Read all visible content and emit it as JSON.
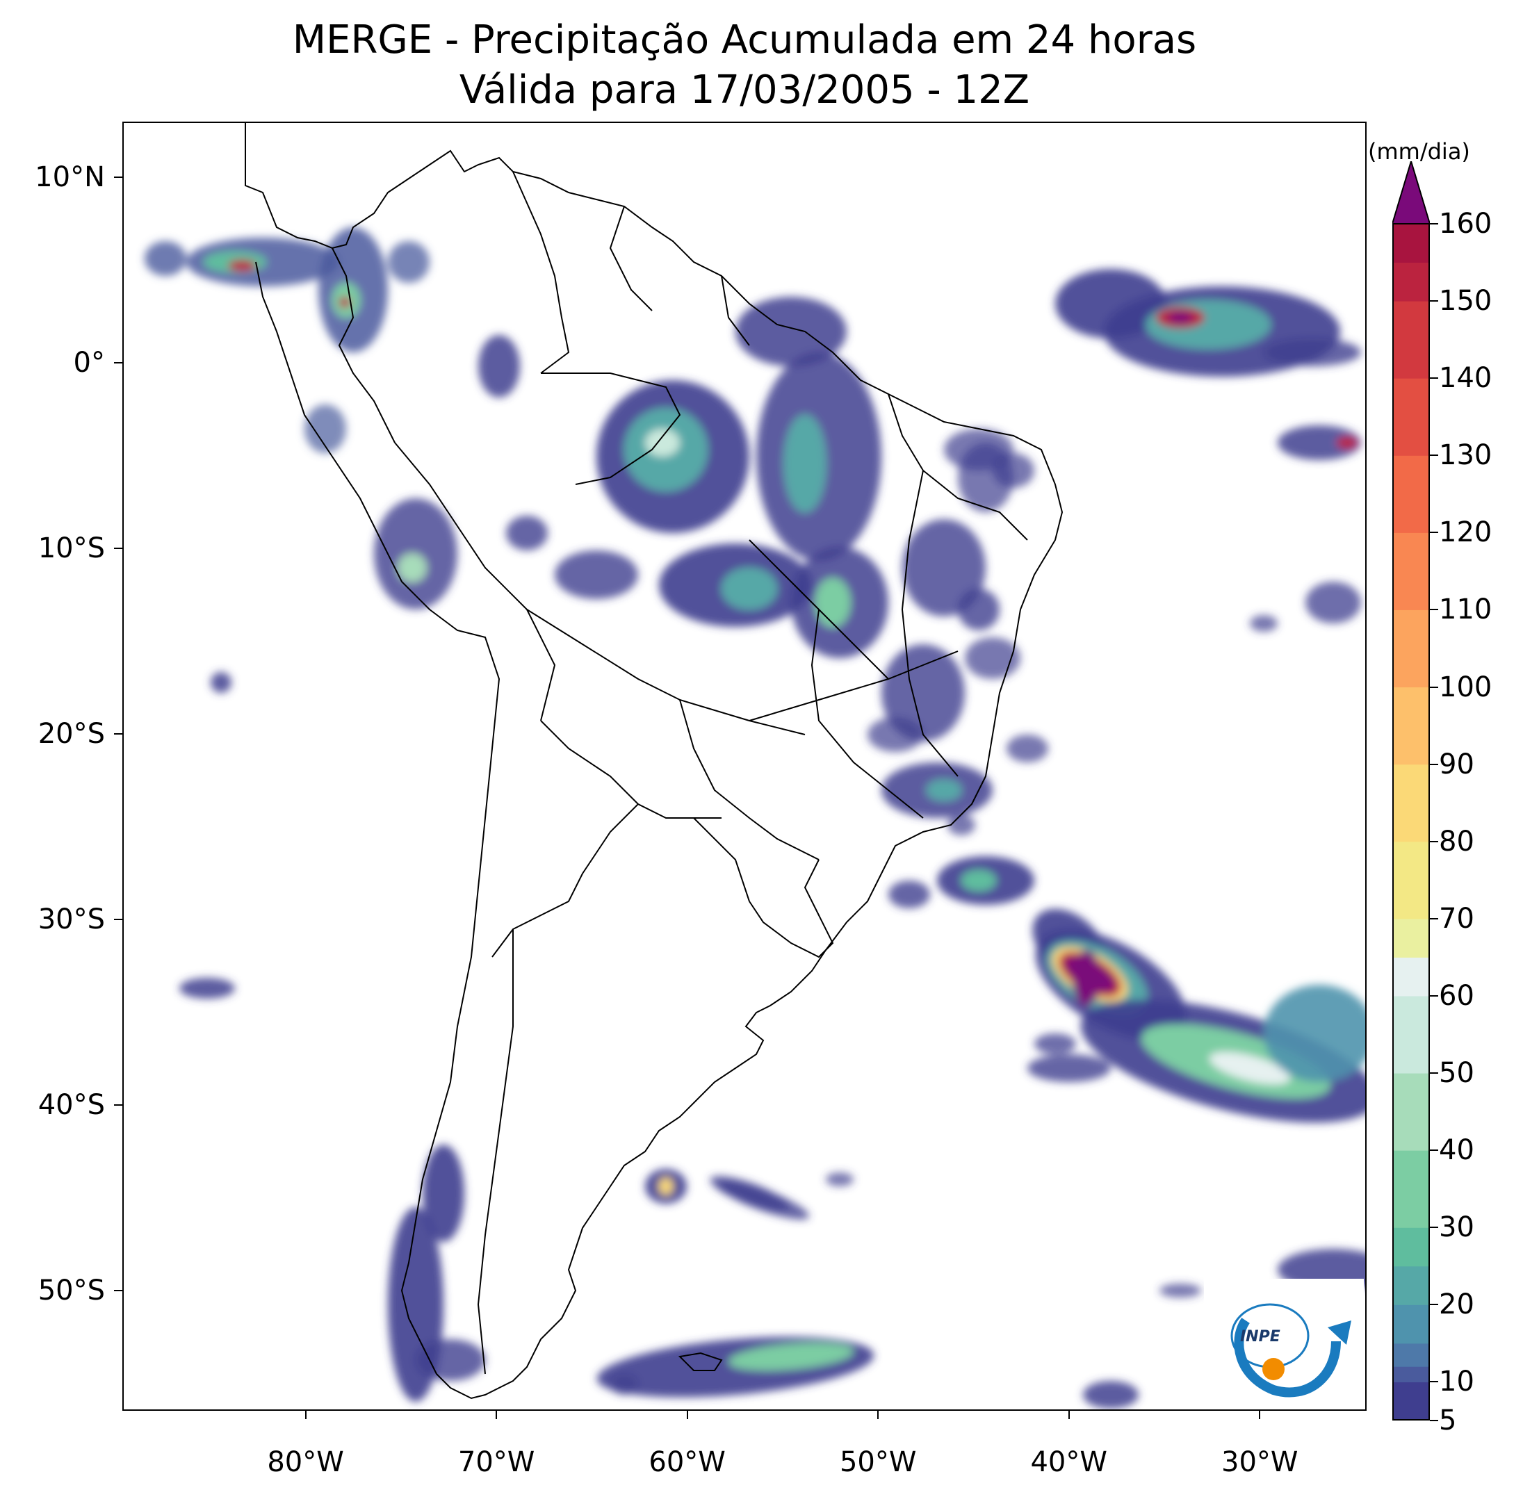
{
  "title": {
    "line1": "MERGE - Precipitação Acumulada em 24 horas",
    "line2": "Válida para 17/03/2005 - 12Z"
  },
  "map": {
    "lon_range": [
      -89.6,
      -24.4
    ],
    "lat_range": [
      -56.5,
      13.0
    ],
    "lat_ticks": [
      "10°N",
      "0°",
      "10°S",
      "20°S",
      "30°S",
      "40°S",
      "50°S"
    ],
    "lat_values": [
      10,
      0,
      -10,
      -20,
      -30,
      -40,
      -50
    ],
    "lon_ticks": [
      "80°W",
      "70°W",
      "60°W",
      "50°W",
      "40°W",
      "30°W"
    ],
    "lon_values": [
      -80,
      -70,
      -60,
      -50,
      -40,
      -30
    ]
  },
  "colorbar": {
    "units": "(mm/dia)",
    "tick_labels": [
      "5",
      "10",
      "20",
      "30",
      "40",
      "50",
      "60",
      "70",
      "80",
      "90",
      "100",
      "110",
      "120",
      "130",
      "140",
      "150",
      "160"
    ],
    "tick_values": [
      5,
      10,
      20,
      30,
      40,
      50,
      60,
      70,
      80,
      90,
      100,
      110,
      120,
      130,
      140,
      150,
      160
    ],
    "colors": [
      "#3f3e8f",
      "#4a5b9d",
      "#4e79a9",
      "#4f93ad",
      "#56a8a7",
      "#5fbd9e",
      "#7ccda3",
      "#a7dcba",
      "#cae9dd",
      "#e6f1f0",
      "#eaf0a0",
      "#f3e885",
      "#fbd977",
      "#fdc06b",
      "#fca45e",
      "#f98752",
      "#f26a48",
      "#e34f42",
      "#d2393f",
      "#bb233f",
      "#a8143f"
    ],
    "extend_color": "#7a0a7a"
  },
  "logo": {
    "text": "INPE"
  }
}
